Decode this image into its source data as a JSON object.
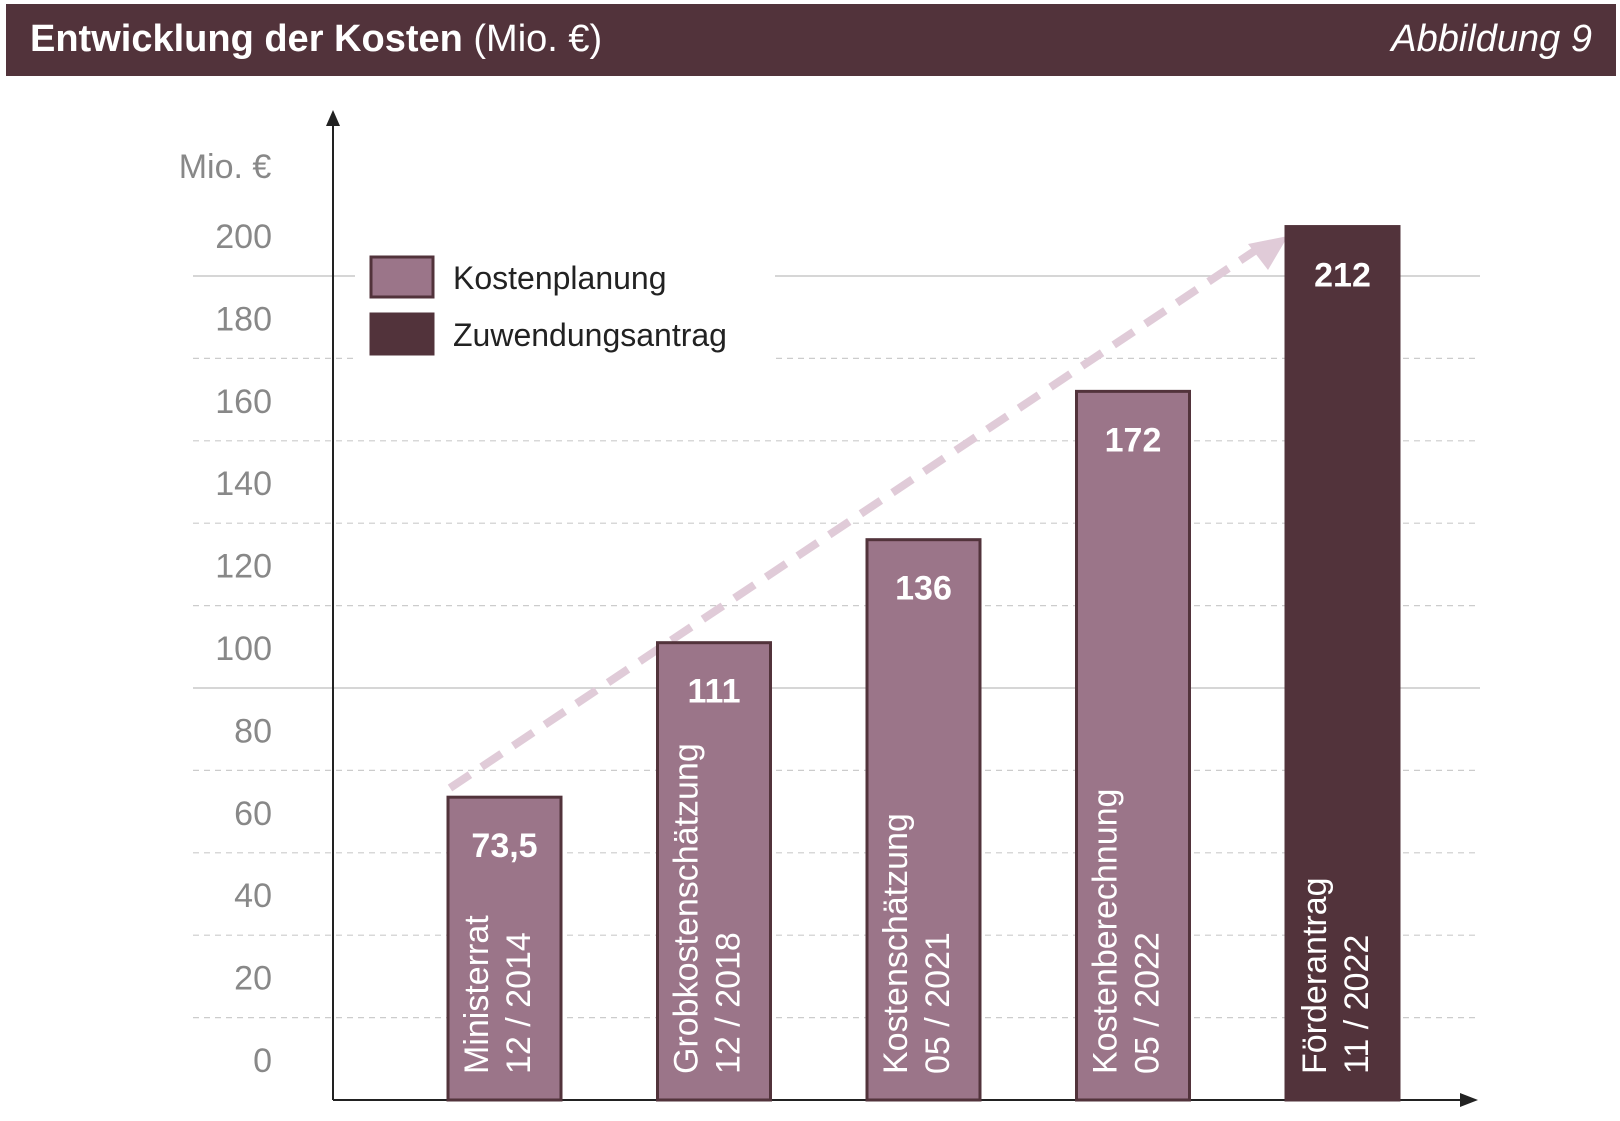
{
  "header": {
    "title_bold": "Entwicklung der Kosten",
    "title_unit": " (Mio. €)",
    "figure_label": "Abbildung 9"
  },
  "chart_data": {
    "type": "bar",
    "title": "Entwicklung der Kosten (Mio. €)",
    "ylabel": "Mio. €",
    "xlabel": "",
    "ylim": [
      0,
      200
    ],
    "yticks": [
      0,
      20,
      40,
      60,
      80,
      100,
      120,
      140,
      160,
      180,
      200
    ],
    "grid": true,
    "legend_position": "top-left",
    "categories": [
      {
        "label": "Ministerrat",
        "date": "12 / 2014"
      },
      {
        "label": "Grobkostenschätzung",
        "date": "12 / 2018"
      },
      {
        "label": "Kostenschätzung",
        "date": "05 / 2021"
      },
      {
        "label": "Kostenberechnung",
        "date": "05 / 2022"
      },
      {
        "label": "Förderantrag",
        "date": "11 / 2022"
      }
    ],
    "values": [
      73.5,
      111,
      136,
      172,
      212
    ],
    "value_labels": [
      "73,5",
      "111",
      "136",
      "172",
      "212"
    ],
    "series_of_bar": [
      "Kostenplanung",
      "Kostenplanung",
      "Kostenplanung",
      "Kostenplanung",
      "Zuwendungsantrag"
    ],
    "legend": [
      {
        "name": "Kostenplanung",
        "color": "#9b7589"
      },
      {
        "name": "Zuwendungsantrag",
        "color": "#52333b"
      }
    ],
    "trend_arrow_color": "#e0cbd8"
  }
}
